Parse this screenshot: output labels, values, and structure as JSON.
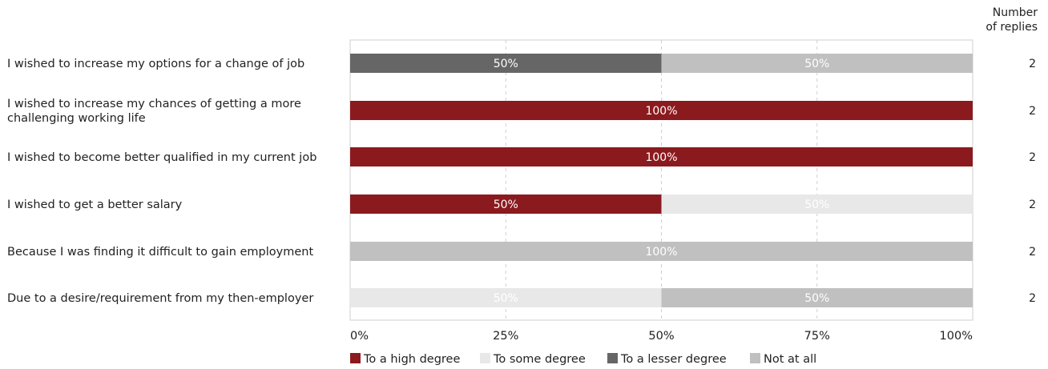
{
  "chart_data": {
    "type": "bar",
    "orientation": "horizontal",
    "stacked": true,
    "percent_scale": true,
    "categories": [
      "I wished to increase my options for a change of job",
      "I wished to increase my chances of getting a more challenging working life",
      "I wished to become better qualified in my current job",
      "I wished to get a better salary",
      "Because I was finding it difficult to gain employment",
      "Due to a desire/requirement from my then-employer"
    ],
    "series": [
      {
        "name": "To a high degree",
        "color": "#8b1a1e",
        "values": [
          0,
          100,
          100,
          50,
          0,
          0
        ]
      },
      {
        "name": "To some degree",
        "color": "#e8e8e8",
        "values": [
          0,
          0,
          0,
          50,
          0,
          50
        ]
      },
      {
        "name": "To a lesser degree",
        "color": "#666666",
        "values": [
          50,
          0,
          0,
          0,
          0,
          0
        ]
      },
      {
        "name": "Not at all",
        "color": "#c0c0c0",
        "values": [
          50,
          0,
          0,
          0,
          100,
          50
        ]
      }
    ],
    "value_suffix": "%",
    "xlim": [
      0,
      100
    ],
    "xticks": [
      "0%",
      "25%",
      "50%",
      "75%",
      "100%"
    ],
    "grid": true,
    "legend_position": "bottom",
    "replies_header": "Number of replies",
    "replies": [
      "2",
      "2",
      "2",
      "2",
      "2",
      "2"
    ]
  }
}
